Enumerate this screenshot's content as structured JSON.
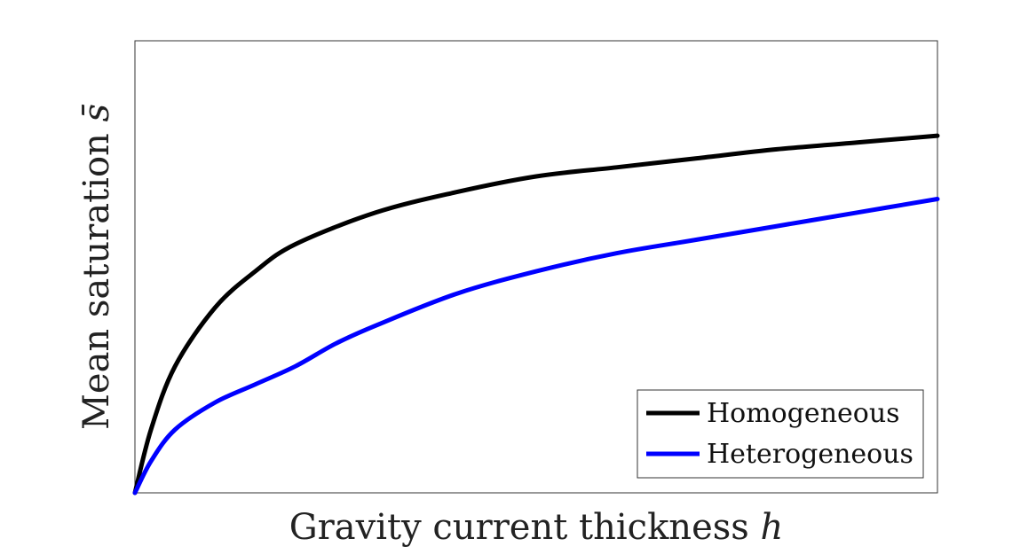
{
  "chart_data": {
    "type": "line",
    "xlabel": "Gravity current thickness",
    "xlabel_symbol": "h",
    "ylabel": "Mean saturation",
    "ylabel_symbol": "s̄",
    "xlim": [
      0,
      1
    ],
    "ylim": [
      0,
      1
    ],
    "grid": false,
    "legend_position": "bottom-right",
    "series": [
      {
        "name": "Homogeneous",
        "color": "#000000",
        "x": [
          0,
          0.02,
          0.05,
          0.1,
          0.15,
          0.2,
          0.3,
          0.4,
          0.5,
          0.6,
          0.7,
          0.8,
          0.9,
          1.0
        ],
        "y": [
          0,
          0.14,
          0.28,
          0.41,
          0.49,
          0.55,
          0.62,
          0.665,
          0.7,
          0.72,
          0.74,
          0.76,
          0.775,
          0.79
        ]
      },
      {
        "name": "Heterogeneous",
        "color": "#0000ff",
        "x": [
          0,
          0.02,
          0.05,
          0.1,
          0.15,
          0.2,
          0.25,
          0.3,
          0.4,
          0.5,
          0.6,
          0.7,
          0.8,
          0.9,
          1.0
        ],
        "y": [
          0,
          0.07,
          0.14,
          0.2,
          0.24,
          0.28,
          0.33,
          0.37,
          0.44,
          0.49,
          0.53,
          0.56,
          0.59,
          0.62,
          0.65
        ]
      }
    ]
  }
}
